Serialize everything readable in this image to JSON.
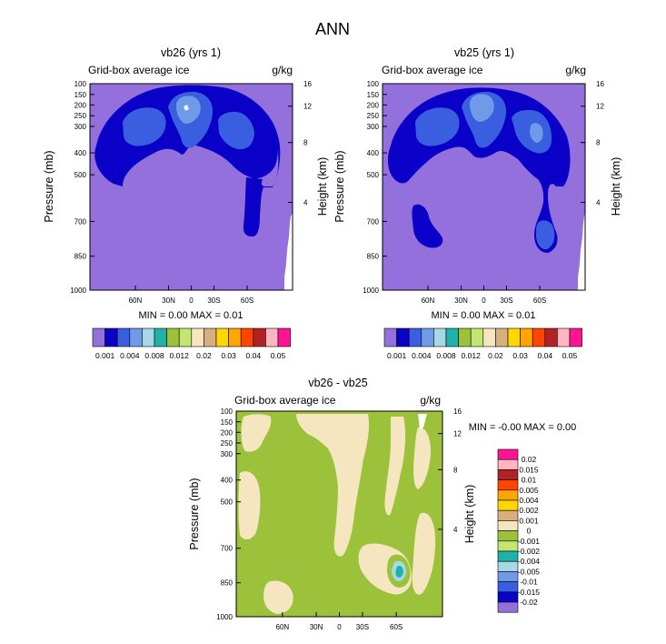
{
  "page_title": "ANN",
  "colors": {
    "c_lt_0_001": "#9370db",
    "c_0_001": "#0a00c8",
    "c_0_002": "#3a5ee0",
    "c_0_004": "#6f9ae8",
    "c_0_006": "#a6d8e6",
    "c_0_008": "#20b2aa",
    "diff_neg_small": "#9bc23a",
    "diff_pos_small": "#f5e6c0",
    "diff_neg_002": "#20b2aa",
    "diff_neg_004": "#a6d8e6"
  },
  "chart_data": [
    {
      "type": "heatmap",
      "id": "vb26",
      "title": "vb26 (yrs 1)",
      "subtitle_left": "Grid-box average ice",
      "units": "g/kg",
      "ylabel": "Pressure (mb)",
      "ylabel_right": "Height (km)",
      "pressure_ticks": [
        "100",
        "150",
        "200",
        "250",
        "300",
        "400",
        "500",
        "700",
        "850",
        "1000"
      ],
      "height_ticks": [
        "16",
        "12",
        "8",
        "4"
      ],
      "x_ticks": [
        "60N",
        "30N",
        "0",
        "30S",
        "60S"
      ],
      "min_max_text": "MIN =   0.00  MAX =  0.01",
      "colorbar_labels": [
        "0.001",
        "0.004",
        "0.008",
        "0.012",
        "0.02",
        "0.03",
        "0.04",
        "0.05"
      ]
    },
    {
      "type": "heatmap",
      "id": "vb25",
      "title": "vb25 (yrs 1)",
      "subtitle_left": "Grid-box average ice",
      "units": "g/kg",
      "ylabel": "Pressure (mb)",
      "ylabel_right": "Height (km)",
      "pressure_ticks": [
        "100",
        "150",
        "200",
        "250",
        "300",
        "400",
        "500",
        "700",
        "850",
        "1000"
      ],
      "height_ticks": [
        "16",
        "12",
        "8",
        "4"
      ],
      "x_ticks": [
        "60N",
        "30N",
        "0",
        "30S",
        "60S"
      ],
      "min_max_text": "MIN =   0.00  MAX =  0.01",
      "colorbar_labels": [
        "0.001",
        "0.004",
        "0.008",
        "0.012",
        "0.02",
        "0.03",
        "0.04",
        "0.05"
      ]
    },
    {
      "type": "heatmap",
      "id": "diff",
      "title": "vb26 - vb25",
      "subtitle_left": "Grid-box average ice",
      "units": "g/kg",
      "ylabel": "Pressure (mb)",
      "ylabel_right": "Height (km)",
      "pressure_ticks": [
        "100",
        "150",
        "200",
        "250",
        "300",
        "400",
        "500",
        "700",
        "850",
        "1000"
      ],
      "height_ticks": [
        "16",
        "12",
        "8",
        "4"
      ],
      "x_ticks": [
        "60N",
        "30N",
        "0",
        "30S",
        "60S"
      ],
      "min_max_text": "MIN =  -0.00  MAX =   0.00",
      "colorbar_labels": [
        "0.02",
        "0.015",
        "0.01",
        "0.005",
        "0.004",
        "0.002",
        "0.001",
        "0",
        "-0.001",
        "-0.002",
        "-0.004",
        "-0.005",
        "-0.01",
        "-0.015",
        "-0.02"
      ]
    }
  ]
}
